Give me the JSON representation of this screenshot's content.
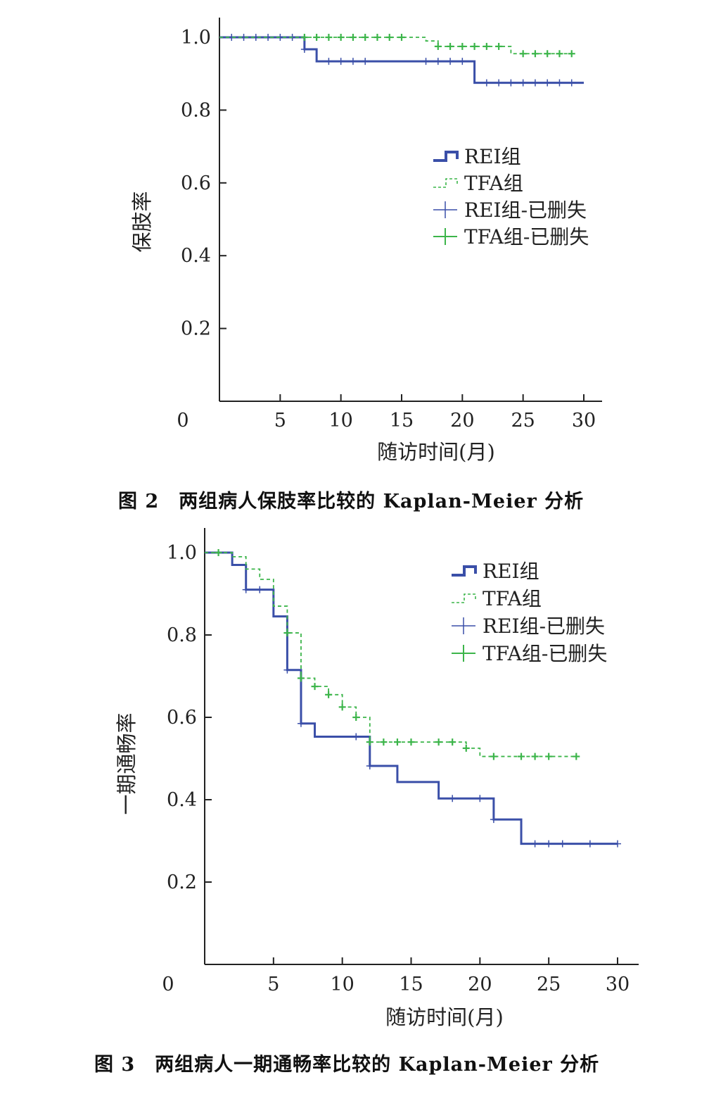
{
  "figures": [
    {
      "caption_label": "图 2",
      "caption_text": "两组病人保肢率比较的 Kaplan-Meier 分析"
    },
    {
      "caption_label": "图 3",
      "caption_text": "两组病人一期通畅率比较的 Kaplan-Meier 分析"
    }
  ],
  "chart_data": [
    {
      "type": "line",
      "title": "",
      "xlabel": "随访时间(月)",
      "ylabel": "保肢率",
      "xlim": [
        0,
        30
      ],
      "ylim": [
        0,
        1.0
      ],
      "x_ticks": [
        0,
        5,
        10,
        15,
        20,
        25,
        30
      ],
      "x_tick_labels": [
        "0",
        "5",
        "10",
        "15",
        "20",
        "25",
        "30"
      ],
      "y_ticks": [
        0.2,
        0.4,
        0.6,
        0.8,
        1.0
      ],
      "y_tick_labels": [
        "0.2",
        "0.4",
        "0.6",
        "0.8",
        "1.0"
      ],
      "legend_position": "right",
      "legend": [
        "REI组",
        "TFA组",
        "REI组-已删失",
        "TFA组-已删失"
      ],
      "series": [
        {
          "name": "REI组",
          "style": "step-solid",
          "color": "#3a4fa8",
          "steps": [
            [
              0,
              1.0
            ],
            [
              7,
              0.967
            ],
            [
              8,
              0.934
            ],
            [
              21,
              0.875
            ],
            [
              30,
              0.875
            ]
          ],
          "censored": [
            1,
            2,
            3,
            4,
            5,
            6,
            7,
            9,
            10,
            11,
            12,
            17,
            18,
            19,
            20,
            22,
            23,
            24,
            25,
            26,
            27,
            28,
            29
          ]
        },
        {
          "name": "TFA组",
          "style": "step-dashed",
          "color": "#3cb54a",
          "steps": [
            [
              0,
              1.0
            ],
            [
              17,
              0.99
            ],
            [
              18,
              0.975
            ],
            [
              24,
              0.955
            ],
            [
              29,
              0.955
            ]
          ],
          "censored": [
            7,
            8,
            9,
            10,
            11,
            12,
            13,
            14,
            15,
            18,
            19,
            20,
            21,
            22,
            23,
            25,
            26,
            27,
            28,
            29
          ]
        }
      ]
    },
    {
      "type": "line",
      "title": "",
      "xlabel": "随访时间(月)",
      "ylabel": "一期通畅率",
      "xlim": [
        0,
        30
      ],
      "ylim": [
        0,
        1.0
      ],
      "x_ticks": [
        0,
        5,
        10,
        15,
        20,
        25,
        30
      ],
      "x_tick_labels": [
        "0",
        "5",
        "10",
        "15",
        "20",
        "25",
        "30"
      ],
      "y_ticks": [
        0.2,
        0.4,
        0.6,
        0.8,
        1.0
      ],
      "y_tick_labels": [
        "0.2",
        "0.4",
        "0.6",
        "0.8",
        "1.0"
      ],
      "legend_position": "top-right",
      "legend": [
        "REI组",
        "TFA组",
        "REI组-已删失",
        "TFA组-已删失"
      ],
      "series": [
        {
          "name": "REI组",
          "style": "step-solid",
          "color": "#3a4fa8",
          "steps": [
            [
              0,
              1.0
            ],
            [
              2,
              0.97
            ],
            [
              3,
              0.91
            ],
            [
              5,
              0.845
            ],
            [
              6,
              0.715
            ],
            [
              7,
              0.585
            ],
            [
              8,
              0.553
            ],
            [
              12,
              0.482
            ],
            [
              14,
              0.443
            ],
            [
              17,
              0.403
            ],
            [
              21,
              0.352
            ],
            [
              23,
              0.293
            ],
            [
              30,
              0.293
            ]
          ],
          "censored": [
            1,
            3,
            4,
            6,
            7,
            11,
            12,
            18,
            20,
            21,
            24,
            25,
            26,
            28,
            30
          ]
        },
        {
          "name": "TFA组",
          "style": "step-dashed",
          "color": "#3cb54a",
          "steps": [
            [
              0,
              1.0
            ],
            [
              2,
              0.99
            ],
            [
              3,
              0.96
            ],
            [
              4,
              0.935
            ],
            [
              5,
              0.87
            ],
            [
              6,
              0.805
            ],
            [
              7,
              0.695
            ],
            [
              8,
              0.675
            ],
            [
              9,
              0.655
            ],
            [
              10,
              0.625
            ],
            [
              11,
              0.6
            ],
            [
              12,
              0.54
            ],
            [
              19,
              0.525
            ],
            [
              20,
              0.505
            ],
            [
              27,
              0.505
            ]
          ],
          "censored": [
            1,
            6,
            7,
            8,
            9,
            10,
            11,
            12,
            13,
            14,
            15,
            17,
            18,
            19,
            21,
            23,
            24,
            25,
            27
          ]
        }
      ]
    }
  ]
}
